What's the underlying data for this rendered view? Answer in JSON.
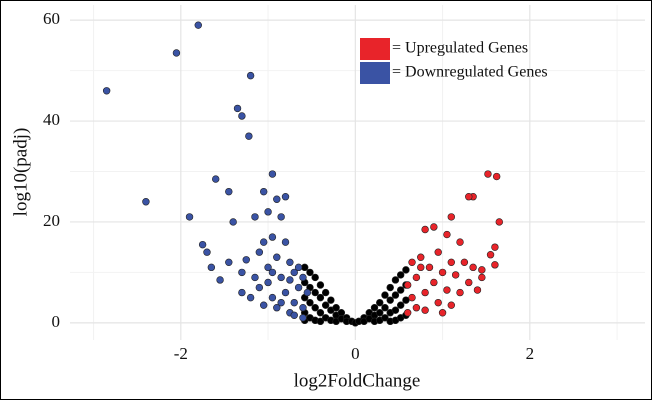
{
  "chart_data": {
    "type": "scatter",
    "x_label": "log2FoldChange",
    "y_label": "log10(padj)",
    "xlim": [
      -3.27,
      3.32
    ],
    "ylim": [
      -3.4,
      63
    ],
    "xticks": [
      -2,
      0,
      2
    ],
    "yticks": [
      0,
      20,
      40,
      60
    ],
    "x_minor_grid": [
      -3,
      -1,
      1,
      3
    ],
    "y_minor_grid": [
      10,
      30,
      50
    ],
    "grid": true,
    "legend": "top-right",
    "series": [
      {
        "color": "#000000",
        "x": [
          -0.58,
          -0.58,
          -0.58,
          -0.58,
          -0.58,
          -0.52,
          -0.52,
          -0.52,
          -0.52,
          -0.46,
          -0.46,
          -0.46,
          -0.46,
          -0.4,
          -0.4,
          -0.4,
          -0.4,
          -0.34,
          -0.34,
          -0.34,
          -0.28,
          -0.28,
          -0.28,
          -0.22,
          -0.22,
          -0.22,
          -0.16,
          -0.16,
          -0.1,
          -0.1,
          -0.04,
          0,
          0.04,
          0.1,
          0.1,
          0.16,
          0.16,
          0.22,
          0.22,
          0.22,
          0.28,
          0.28,
          0.28,
          0.34,
          0.34,
          0.34,
          0.4,
          0.4,
          0.4,
          0.4,
          0.46,
          0.46,
          0.46,
          0.46,
          0.52,
          0.52,
          0.52,
          0.52,
          0.58,
          0.58,
          0.58,
          0.58
        ],
        "y": [
          11,
          8,
          5,
          2,
          0.5,
          10,
          7,
          4,
          1,
          9,
          6,
          3,
          0.5,
          7.5,
          5,
          2,
          0.3,
          6,
          3.5,
          1,
          4.5,
          2.5,
          0.5,
          3,
          1.5,
          0.3,
          2,
          0.8,
          1,
          0.3,
          0.3,
          0,
          0.3,
          1,
          0.3,
          2,
          0.8,
          3,
          1.5,
          0.3,
          4,
          2,
          0.5,
          5.5,
          3,
          1,
          7,
          4.5,
          2,
          0.3,
          8.5,
          5.5,
          2.5,
          0.5,
          9.5,
          6.5,
          3.5,
          1,
          10.5,
          7.5,
          4.5,
          1.5
        ]
      },
      {
        "name": "= Upregulated Genes",
        "color": "#e8242a",
        "x": [
          1.52,
          1.62,
          1.35,
          1.3,
          1.65,
          1.6,
          1.55,
          1.1,
          0.9,
          1.05,
          0.8,
          1.2,
          1.25,
          1.35,
          1.45,
          1.3,
          0.75,
          0.65,
          0.85,
          1.0,
          1.15,
          0.7,
          0.9,
          1.05,
          1.2,
          1.4,
          0.8,
          0.65,
          0.95,
          1.1,
          0.7,
          0.6,
          0.8,
          1.0,
          0.6,
          0.75,
          1.1,
          0.95,
          1.45,
          1.6
        ],
        "y": [
          29.5,
          29,
          25,
          25,
          20,
          15,
          13.5,
          21,
          19,
          17.5,
          18.5,
          16,
          12,
          11,
          9,
          8,
          13,
          12,
          11,
          10,
          9.5,
          9,
          8,
          6.5,
          6,
          6.5,
          6,
          5,
          4,
          3.5,
          3,
          2,
          2.5,
          2,
          7.5,
          11,
          12,
          14,
          10.5,
          11.5
        ]
      },
      {
        "name": "= Downregulated Genes",
        "color": "#3a53a4",
        "x": [
          -2.85,
          -2.4,
          -2.05,
          -1.8,
          -1.2,
          -1.35,
          -1.3,
          -1.22,
          -1.9,
          -1.6,
          -1.45,
          -1.05,
          -0.95,
          -0.9,
          -0.8,
          -1.75,
          -1.7,
          -1.4,
          -1.15,
          -1.0,
          -0.85,
          -1.65,
          -1.55,
          -1.3,
          -1.45,
          -1.25,
          -1.1,
          -1.05,
          -0.95,
          -0.8,
          -0.75,
          -0.7,
          -1.0,
          -0.9,
          -0.85,
          -0.65,
          -1.1,
          -1.2,
          -0.95,
          -0.8,
          -0.7,
          -0.6,
          -0.75,
          -0.9,
          -1.05,
          -1.0,
          -0.65,
          -0.6,
          -0.55,
          -0.7,
          -0.6,
          -1.3,
          -0.85,
          -0.75,
          -0.95,
          -1.15
        ],
        "y": [
          46,
          24,
          53.5,
          59,
          49,
          42.5,
          41,
          37,
          21,
          28.5,
          26,
          26,
          29.5,
          24.5,
          25,
          15.5,
          14,
          20,
          21,
          22,
          21,
          11,
          8.5,
          10,
          12,
          12.5,
          14,
          16,
          17,
          16,
          12,
          10,
          11,
          13,
          9,
          7,
          7,
          5,
          5,
          6,
          4,
          3,
          2,
          3,
          3.5,
          8,
          11,
          9,
          6,
          1.5,
          1,
          6,
          4,
          8.5,
          10,
          9
        ]
      }
    ]
  }
}
